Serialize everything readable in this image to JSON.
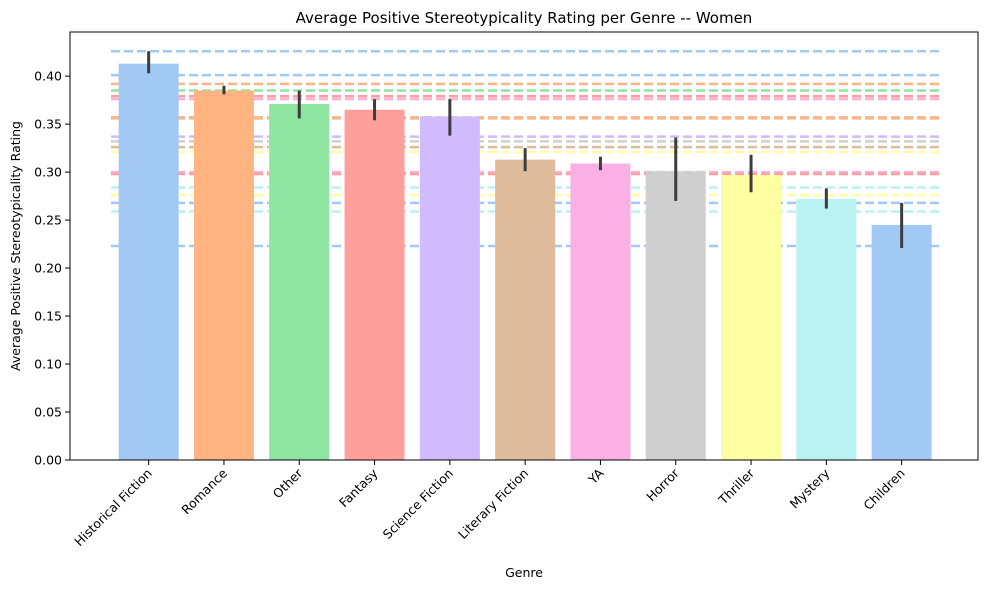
{
  "chart_data": {
    "type": "bar",
    "title": "Average Positive Stereotypicality Rating per Genre -- Women",
    "xlabel": "Genre",
    "ylabel": "Average Positive Stereotypicality Rating",
    "ylim": [
      0,
      0.446
    ],
    "yticks": [
      0.0,
      0.05,
      0.1,
      0.15,
      0.2,
      0.25,
      0.3,
      0.35,
      0.4
    ],
    "ytick_labels": [
      "0.00",
      "0.05",
      "0.10",
      "0.15",
      "0.20",
      "0.25",
      "0.30",
      "0.35",
      "0.40"
    ],
    "grid": false,
    "categories": [
      "Historical Fiction",
      "Romance",
      "Other",
      "Fantasy",
      "Science Fiction",
      "Literary Fiction",
      "YA",
      "Horror",
      "Thriller",
      "Mystery",
      "Children"
    ],
    "values": [
      0.413,
      0.385,
      0.371,
      0.365,
      0.358,
      0.313,
      0.309,
      0.301,
      0.297,
      0.272,
      0.245
    ],
    "errors_low": [
      0.403,
      0.381,
      0.356,
      0.354,
      0.338,
      0.301,
      0.302,
      0.27,
      0.279,
      0.262,
      0.221
    ],
    "errors_high": [
      0.426,
      0.39,
      0.385,
      0.376,
      0.376,
      0.325,
      0.316,
      0.336,
      0.318,
      0.283,
      0.268
    ],
    "colors": [
      "#a1c9f4",
      "#ffb482",
      "#8de5a1",
      "#ff9f9b",
      "#d0bbff",
      "#debb9b",
      "#fab0e4",
      "#cfcfcf",
      "#fffea3",
      "#b9f2f0",
      "#a1c9f4"
    ],
    "reference_lines": [
      {
        "y": 0.426,
        "color": "#a1c9f4"
      },
      {
        "y": 0.401,
        "color": "#a1c9f4"
      },
      {
        "y": 0.392,
        "color": "#ffb482"
      },
      {
        "y": 0.385,
        "color": "#8de5a1"
      },
      {
        "y": 0.379,
        "color": "#ff9f9b"
      },
      {
        "y": 0.376,
        "color": "#fab0e4"
      },
      {
        "y": 0.357,
        "color": "#debb9b"
      },
      {
        "y": 0.356,
        "color": "#ffb482"
      },
      {
        "y": 0.337,
        "color": "#d0bbff"
      },
      {
        "y": 0.332,
        "color": "#cfcfcf"
      },
      {
        "y": 0.326,
        "color": "#debb9b"
      },
      {
        "y": 0.321,
        "color": "#fffea3"
      },
      {
        "y": 0.3,
        "color": "#fab0e4"
      },
      {
        "y": 0.298,
        "color": "#ff9f9b"
      },
      {
        "y": 0.284,
        "color": "#b9f2f0"
      },
      {
        "y": 0.276,
        "color": "#fffea3"
      },
      {
        "y": 0.268,
        "color": "#a1c9f4"
      },
      {
        "y": 0.259,
        "color": "#b9f2f0"
      },
      {
        "y": 0.223,
        "color": "#a1c9f4"
      }
    ]
  }
}
